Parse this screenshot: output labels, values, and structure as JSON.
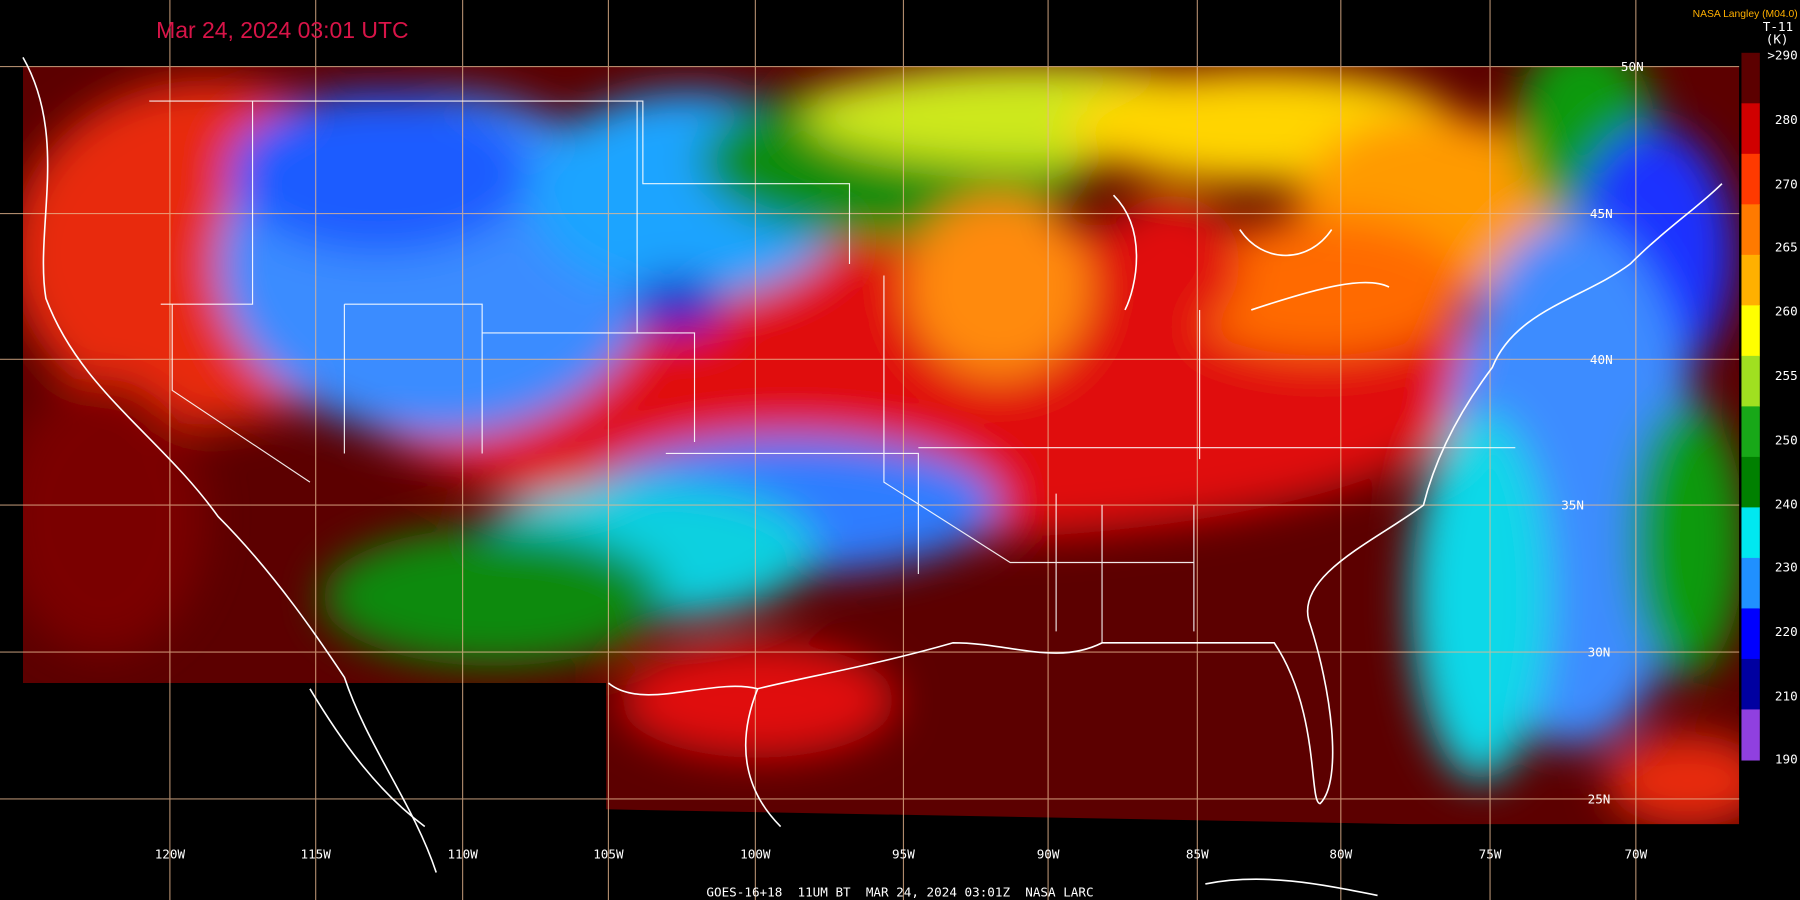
{
  "header": {
    "title": "Mar 24, 2024 03:01 UTC",
    "credit": "NASA Langley (M04.0)",
    "product": "T-11",
    "unit": "(K)"
  },
  "colorbar": {
    "labels": [
      ">290",
      "280",
      "270",
      "265",
      "260",
      "255",
      "250",
      "240",
      "230",
      "220",
      "210",
      "190"
    ]
  },
  "longitudes": [
    "120W",
    "115W",
    "110W",
    "105W",
    "100W",
    "95W",
    "90W",
    "85W",
    "80W",
    "75W",
    "70W"
  ],
  "latitudes": [
    "50N",
    "45N",
    "40N",
    "35N",
    "30N",
    "25N"
  ],
  "footer": "GOES-16+18  11UM BT  MAR 24, 2024 03:01Z  NASA LARC"
}
